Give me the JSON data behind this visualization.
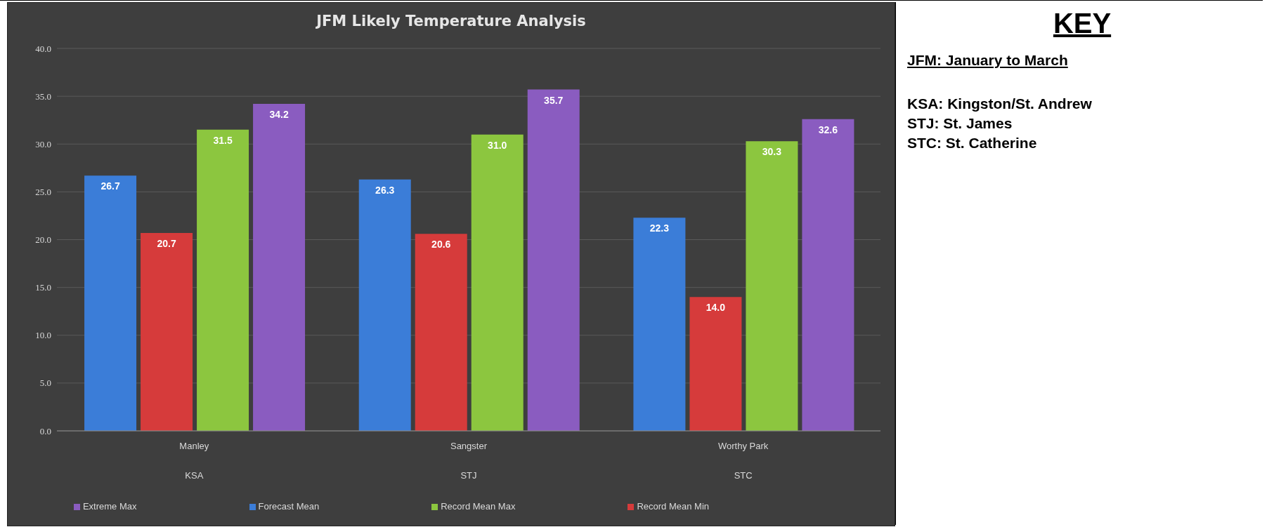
{
  "chart_data": [
    {
      "type": "bar",
      "title": "JFM Likely Temperature Analysis",
      "categories": [
        "Manley\nKSA",
        "Sangster\nSTJ",
        "Worthy Park\nSTC"
      ],
      "series": [
        {
          "name": "Forecast Mean",
          "color": "#3b7dd8",
          "values": [
            26.7,
            26.3,
            22.3
          ],
          "value_labels": [
            "26.7",
            "26.3",
            "22.3"
          ]
        },
        {
          "name": "Record Mean Min",
          "color": "#d63b3b",
          "values": [
            20.7,
            20.6,
            14
          ],
          "value_labels": [
            "20.7",
            "20.6",
            "14.0"
          ]
        },
        {
          "name": "Record Mean Max",
          "color": "#8cc63f",
          "values": [
            31.5,
            31,
            30.3
          ],
          "value_labels": [
            "31.5",
            "31.0",
            "30.3"
          ]
        },
        {
          "name": "Extreme Max",
          "color": "#8a5cc0",
          "values": [
            34.2,
            35.7,
            32.6
          ],
          "value_labels": [
            "34.2",
            "35.7",
            "32.6"
          ]
        }
      ],
      "ylim": [
        0,
        40
      ],
      "yticks": [
        {
          "value": 0,
          "label": "0.0"
        },
        {
          "value": 5,
          "label": "5.0"
        },
        {
          "value": 10,
          "label": "10.0"
        },
        {
          "value": 15,
          "label": "15.0"
        },
        {
          "value": 20,
          "label": "20.0"
        },
        {
          "value": 25,
          "label": "25.0"
        },
        {
          "value": 30,
          "label": "30.0"
        },
        {
          "value": 35,
          "label": "35.0"
        },
        {
          "value": 40,
          "label": "40.0"
        }
      ],
      "grid": "y",
      "legend": "bottom"
    },
    {
      "type": "other",
      "title": "KEY",
      "annotations": [
        "JFM: January to March",
        "KSA: Kingston/St. Andrew",
        "STJ: St. James",
        "STC: St. Catherine"
      ]
    }
  ]
}
